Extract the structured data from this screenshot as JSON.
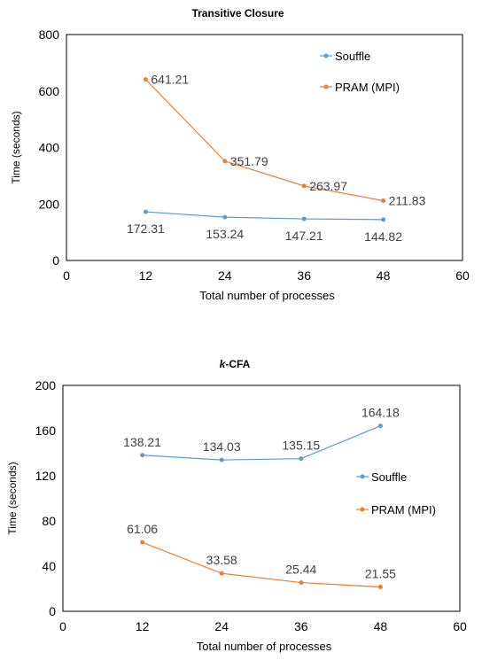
{
  "chart_data": [
    {
      "type": "line",
      "title": "Transitive Closure",
      "title_prefix": "",
      "xlabel": "Total number of processes",
      "ylabel": "Time (seconds)",
      "xlim": [
        0,
        60
      ],
      "ylim": [
        0,
        800
      ],
      "xticks": [
        0,
        12,
        24,
        36,
        48,
        60
      ],
      "yticks": [
        0,
        200,
        400,
        600,
        800
      ],
      "legend_position": "top-right",
      "series": [
        {
          "name": "Souffle",
          "color": "#5b9bd5",
          "x": [
            12,
            24,
            36,
            48
          ],
          "values": [
            172.31,
            153.24,
            147.21,
            144.82
          ],
          "labels": [
            "172.31",
            "153.24",
            "147.21",
            "144.82"
          ],
          "label_side": "below"
        },
        {
          "name": "PRAM (MPI)",
          "color": "#ed7d31",
          "x": [
            12,
            24,
            36,
            48
          ],
          "values": [
            641.21,
            351.79,
            263.97,
            211.83
          ],
          "labels": [
            "641.21",
            "351.79",
            "263.97",
            "211.83"
          ],
          "label_side": "right"
        }
      ]
    },
    {
      "type": "line",
      "title": "-CFA",
      "title_prefix": "k",
      "xlabel": "Total number of processes",
      "ylabel": "Time (seconds)",
      "xlim": [
        0,
        60
      ],
      "ylim": [
        0,
        200
      ],
      "xticks": [
        0,
        12,
        24,
        36,
        48,
        60
      ],
      "yticks": [
        0,
        40,
        80,
        120,
        160,
        200
      ],
      "legend_position": "right",
      "series": [
        {
          "name": "Souffle",
          "color": "#5b9bd5",
          "x": [
            12,
            24,
            36,
            48
          ],
          "values": [
            138.21,
            134.03,
            135.15,
            164.18
          ],
          "labels": [
            "138.21",
            "134.03",
            "135.15",
            "164.18"
          ],
          "label_side": "above"
        },
        {
          "name": "PRAM (MPI)",
          "color": "#ed7d31",
          "x": [
            12,
            24,
            36,
            48
          ],
          "values": [
            61.06,
            33.58,
            25.44,
            21.55
          ],
          "labels": [
            "61.06",
            "33.58",
            "25.44",
            "21.55"
          ],
          "label_side": "above"
        }
      ]
    }
  ]
}
